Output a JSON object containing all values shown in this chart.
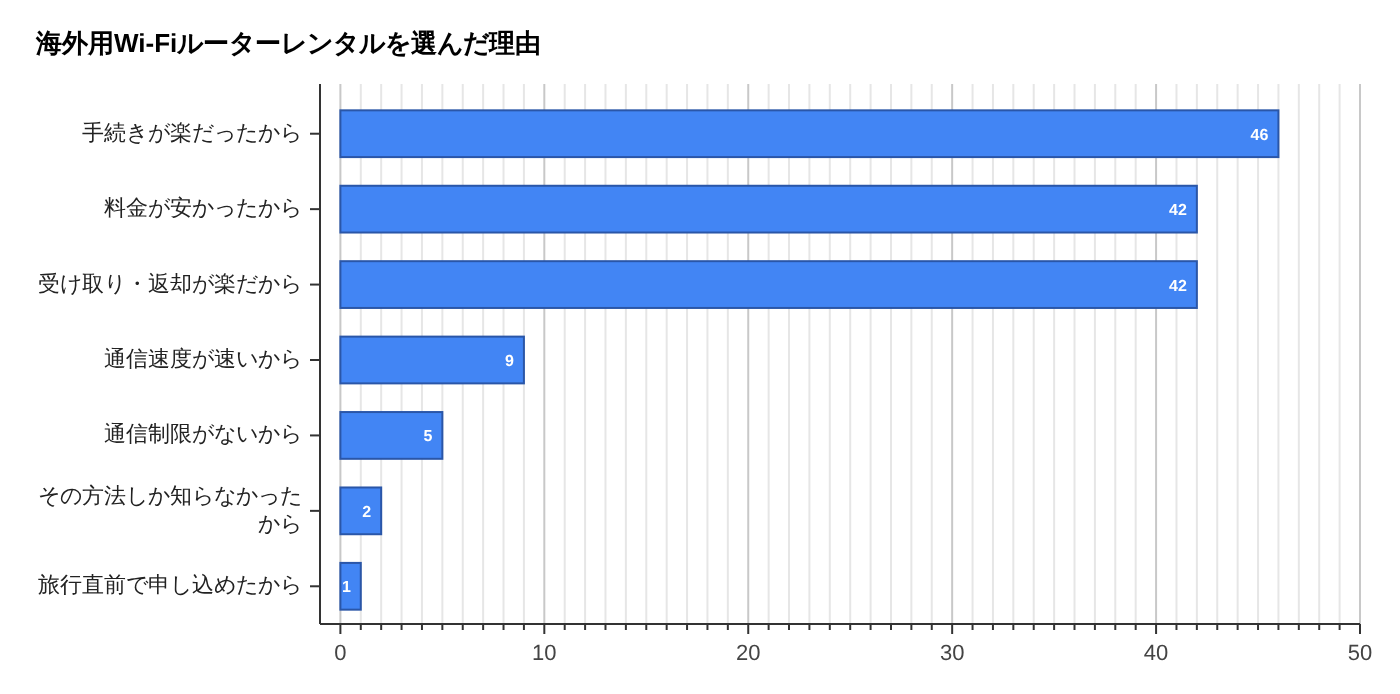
{
  "chart_data": {
    "type": "bar",
    "orientation": "horizontal",
    "title": "海外用Wi-Fiルーターレンタルを選んだ理由",
    "categories": [
      "手続きが楽だったから",
      "料金が安かったから",
      "受け取り・返却が楽だから",
      "通信速度が速いから",
      "通信制限がないから",
      "その方法しか知らなかったから",
      "旅行直前で申し込めたから"
    ],
    "values": [
      46,
      42,
      42,
      9,
      5,
      2,
      1
    ],
    "color": "#4285f4",
    "data_labels": true,
    "grid": "x",
    "xlim": [
      -1,
      50
    ],
    "xticks": [
      0,
      {
        "value": 1,
        "label": null
      },
      {
        "value": 2,
        "label": null
      },
      {
        "value": 3,
        "label": null
      },
      {
        "value": 4,
        "label": null
      },
      {
        "value": 5,
        "label": null
      },
      {
        "value": 6,
        "label": null
      },
      {
        "value": 7,
        "label": null
      },
      {
        "value": 8,
        "label": null
      },
      {
        "value": 9,
        "label": null
      },
      10,
      {
        "value": 11,
        "label": null
      },
      {
        "value": 12,
        "label": null
      },
      {
        "value": 13,
        "label": null
      },
      {
        "value": 14,
        "label": null
      },
      {
        "value": 15,
        "label": null
      },
      {
        "value": 16,
        "label": null
      },
      {
        "value": 17,
        "label": null
      },
      {
        "value": 18,
        "label": null
      },
      {
        "value": 19,
        "label": null
      },
      20,
      {
        "value": 21,
        "label": null
      },
      {
        "value": 22,
        "label": null
      },
      {
        "value": 23,
        "label": null
      },
      {
        "value": 24,
        "label": null
      },
      {
        "value": 25,
        "label": null
      },
      {
        "value": 26,
        "label": null
      },
      {
        "value": 27,
        "label": null
      },
      {
        "value": 28,
        "label": null
      },
      {
        "value": 29,
        "label": null
      },
      30,
      {
        "value": 31,
        "label": null
      },
      {
        "value": 32,
        "label": null
      },
      {
        "value": 33,
        "label": null
      },
      {
        "value": 34,
        "label": null
      },
      {
        "value": 35,
        "label": null
      },
      {
        "value": 36,
        "label": null
      },
      {
        "value": 37,
        "label": null
      },
      {
        "value": 38,
        "label": null
      },
      {
        "value": 39,
        "label": null
      },
      40,
      {
        "value": 41,
        "label": null
      },
      {
        "value": 42,
        "label": null
      },
      {
        "value": 43,
        "label": null
      },
      {
        "value": 44,
        "label": null
      },
      {
        "value": 45,
        "label": null
      },
      {
        "value": 46,
        "label": null
      },
      {
        "value": 47,
        "label": null
      },
      {
        "value": 48,
        "label": null
      },
      {
        "value": 49,
        "label": null
      },
      50
    ]
  }
}
